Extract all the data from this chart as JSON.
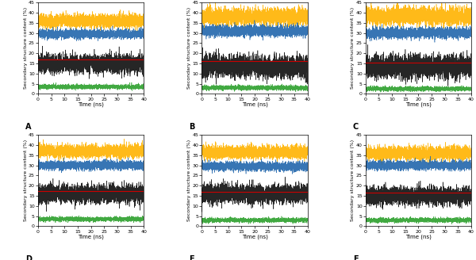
{
  "panels": [
    {
      "label": "A",
      "yellow_mean": 36.0,
      "blue_mean": 29.5,
      "black_mean": 15.0,
      "red_mean": 17.0,
      "green_mean": 3.5
    },
    {
      "label": "B",
      "yellow_mean": 38.0,
      "blue_mean": 31.0,
      "black_mean": 13.5,
      "red_mean": 16.0,
      "green_mean": 3.0
    },
    {
      "label": "C",
      "yellow_mean": 38.5,
      "blue_mean": 30.0,
      "black_mean": 13.5,
      "red_mean": 15.5,
      "green_mean": 2.5
    },
    {
      "label": "D",
      "yellow_mean": 37.0,
      "blue_mean": 30.0,
      "black_mean": 16.0,
      "red_mean": 17.5,
      "green_mean": 3.5
    },
    {
      "label": "E",
      "yellow_mean": 36.5,
      "blue_mean": 29.5,
      "black_mean": 16.0,
      "red_mean": 17.0,
      "green_mean": 3.0
    },
    {
      "label": "F",
      "yellow_mean": 36.0,
      "blue_mean": 30.0,
      "black_mean": 15.0,
      "red_mean": 16.5,
      "green_mean": 3.0
    }
  ],
  "yellow_noise": [
    1.5,
    1.8,
    2.0,
    1.5,
    1.5,
    1.5
  ],
  "blue_noise": [
    1.0,
    1.2,
    1.2,
    1.0,
    1.0,
    1.0
  ],
  "black_noise": [
    2.0,
    2.5,
    2.5,
    2.0,
    2.0,
    2.0
  ],
  "green_noise": [
    0.5,
    0.5,
    0.5,
    0.5,
    0.5,
    0.5
  ],
  "n_points": 4000,
  "t_max": 40,
  "ylim": [
    0,
    45
  ],
  "yticks": [
    0,
    5,
    10,
    15,
    20,
    25,
    30,
    35,
    40,
    45
  ],
  "xticks": [
    0,
    5,
    10,
    15,
    20,
    25,
    30,
    35,
    40
  ],
  "xlabel": "Time (ns)",
  "ylabel": "Secondary structure content (%)",
  "yellow_color": "#FFB300",
  "blue_color": "#2166AC",
  "black_color": "#000000",
  "red_color": "#CC0000",
  "green_color": "#2CA02C",
  "linewidth_noise": 0.4,
  "linewidth_red": 0.8,
  "fig_width": 6.0,
  "fig_height": 3.28,
  "dpi": 100
}
